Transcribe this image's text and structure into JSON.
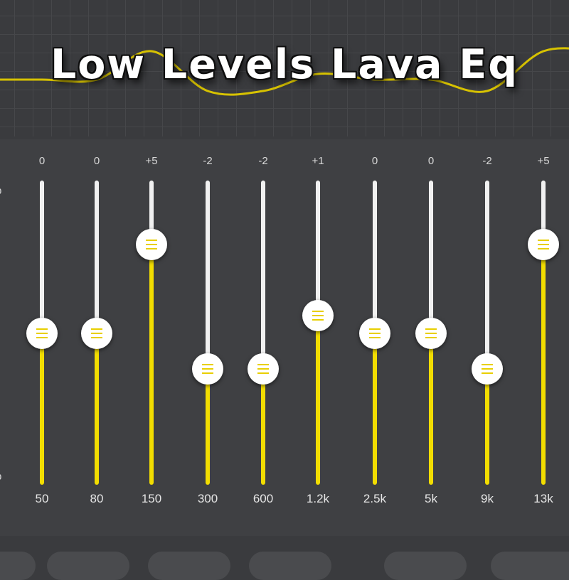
{
  "title": "Low Levels Lava Eq",
  "colors": {
    "accent": "#f2dd00",
    "curve": "#d7c200",
    "background": "#3a3b3e",
    "panel": "#3f4043",
    "knob": "#ffffff",
    "track": "#f1f1f1"
  },
  "axis": {
    "top_label": "b",
    "bottom_label": "b",
    "max_db": 12,
    "min_db": -12
  },
  "bands": [
    {
      "freq": "50",
      "gain": "0",
      "value": 0
    },
    {
      "freq": "80",
      "gain": "0",
      "value": 0
    },
    {
      "freq": "150",
      "gain": "+5",
      "value": 5
    },
    {
      "freq": "300",
      "gain": "-2",
      "value": -2
    },
    {
      "freq": "600",
      "gain": "-2",
      "value": -2
    },
    {
      "freq": "1.2k",
      "gain": "+1",
      "value": 1
    },
    {
      "freq": "2.5k",
      "gain": "0",
      "value": 0
    },
    {
      "freq": "5k",
      "gain": "0",
      "value": 0
    },
    {
      "freq": "9k",
      "gain": "-2",
      "value": -2
    },
    {
      "freq": "13k",
      "gain": "+5",
      "value": 5
    }
  ]
}
